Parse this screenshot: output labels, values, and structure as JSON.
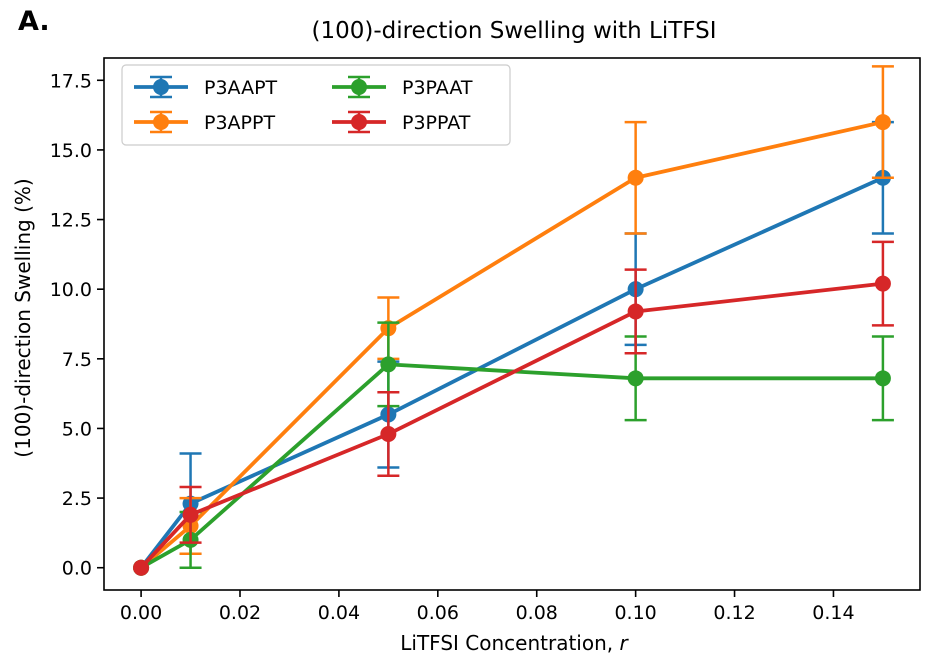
{
  "panel_label": "A.",
  "chart_data": {
    "type": "line",
    "title": "(100)-direction Swelling with LiTFSI",
    "xlabel": "LiTFSI Concentration, ",
    "xlabel_var": "r",
    "ylabel": "(100)-direction Swelling (%)",
    "xlim": [
      -0.0075,
      0.1575
    ],
    "ylim": [
      -0.8,
      18.3
    ],
    "xticks": [
      0.0,
      0.02,
      0.04,
      0.06,
      0.08,
      0.1,
      0.12,
      0.14
    ],
    "xtick_labels": [
      "0.00",
      "0.02",
      "0.04",
      "0.06",
      "0.08",
      "0.10",
      "0.12",
      "0.14"
    ],
    "yticks": [
      0.0,
      2.5,
      5.0,
      7.5,
      10.0,
      12.5,
      15.0,
      17.5
    ],
    "ytick_labels": [
      "0.0",
      "2.5",
      "5.0",
      "7.5",
      "10.0",
      "12.5",
      "15.0",
      "17.5"
    ],
    "x": [
      0.0,
      0.01,
      0.05,
      0.1,
      0.15
    ],
    "grid": false,
    "legend_position": "top-left",
    "series": [
      {
        "name": "P3AAPT",
        "color": "#1f77b4",
        "values": [
          0.0,
          2.3,
          5.5,
          10.0,
          14.0
        ],
        "errors": [
          0.0,
          1.8,
          1.9,
          2.0,
          2.0
        ]
      },
      {
        "name": "P3APPT",
        "color": "#ff7f0e",
        "values": [
          0.0,
          1.5,
          8.6,
          14.0,
          16.0
        ],
        "errors": [
          0.0,
          1.0,
          1.1,
          2.0,
          2.0
        ]
      },
      {
        "name": "P3PAAT",
        "color": "#2ca02c",
        "values": [
          0.0,
          1.0,
          7.3,
          6.8,
          6.8
        ],
        "errors": [
          0.0,
          1.0,
          1.5,
          1.5,
          1.5
        ]
      },
      {
        "name": "P3PPAT",
        "color": "#d62728",
        "values": [
          0.0,
          1.9,
          4.8,
          9.2,
          10.2
        ],
        "errors": [
          0.0,
          1.0,
          1.5,
          1.5,
          1.5
        ]
      }
    ]
  }
}
